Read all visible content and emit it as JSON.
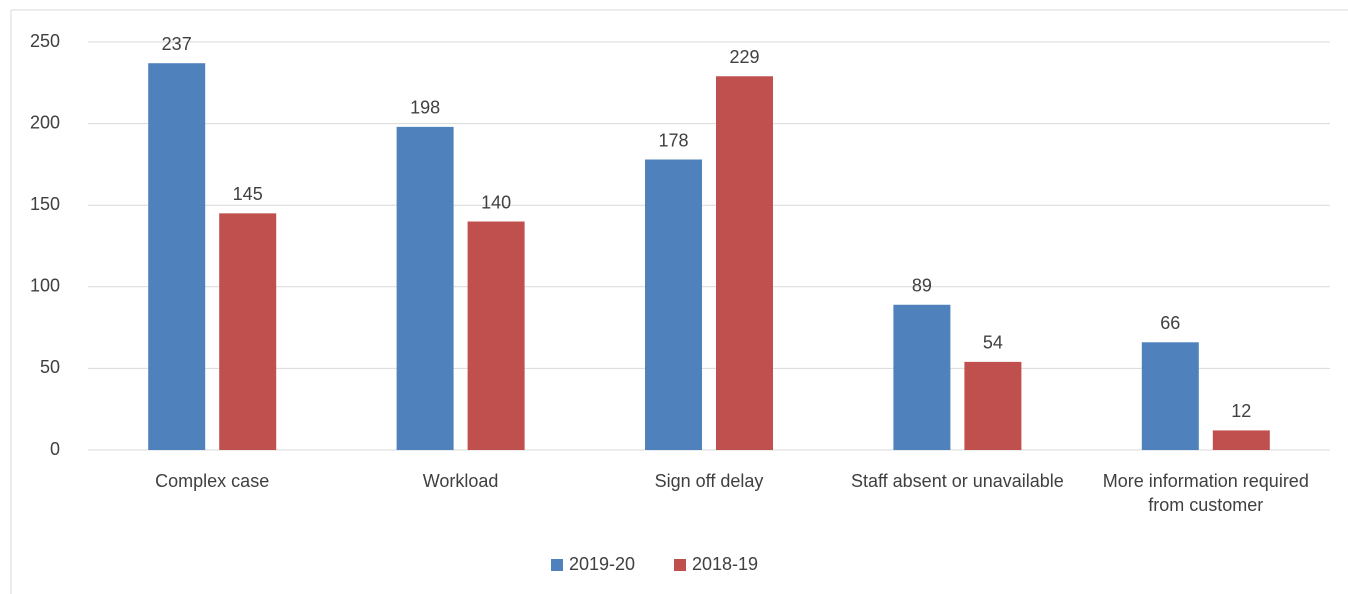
{
  "chart_data": {
    "type": "bar",
    "categories": [
      "Complex case",
      "Workload",
      "Sign off delay",
      "Staff absent or unavailable",
      "More information required from customer"
    ],
    "series": [
      {
        "name": "2019-20",
        "color": "#4f81bd",
        "values": [
          237,
          198,
          178,
          89,
          66
        ]
      },
      {
        "name": "2018-19",
        "color": "#c0504d",
        "values": [
          145,
          140,
          229,
          54,
          12
        ]
      }
    ],
    "ylim": [
      0,
      250
    ],
    "yticks": [
      0,
      50,
      100,
      150,
      200,
      250
    ],
    "grid": true,
    "legend": "bottom"
  }
}
